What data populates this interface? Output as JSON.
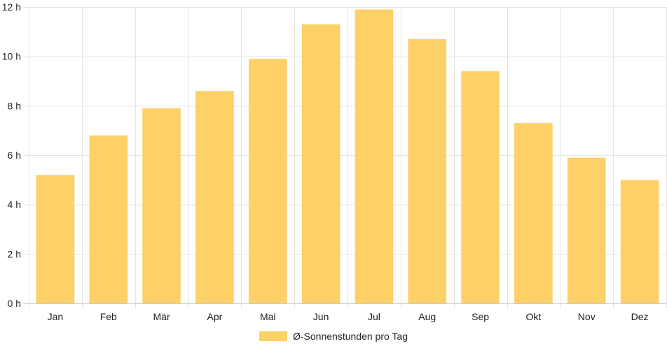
{
  "chart_data": {
    "type": "bar",
    "categories": [
      "Jan",
      "Feb",
      "Mär",
      "Apr",
      "Mai",
      "Jun",
      "Jul",
      "Aug",
      "Sep",
      "Okt",
      "Nov",
      "Dez"
    ],
    "series": [
      {
        "name": "Ø-Sonnenstunden pro Tag",
        "values": [
          5.2,
          6.8,
          7.9,
          8.6,
          9.9,
          11.3,
          11.9,
          10.7,
          9.4,
          7.3,
          5.9,
          5.0
        ],
        "color": "#fdd068"
      }
    ],
    "title": "",
    "xlabel": "",
    "ylabel": "",
    "ylim": [
      0,
      12
    ],
    "yticks": [
      0,
      2,
      4,
      6,
      8,
      10,
      12
    ],
    "ytick_labels": [
      "0 h",
      "2 h",
      "4 h",
      "6 h",
      "8 h",
      "10 h",
      "12 h"
    ],
    "grid": true,
    "legend_position": "bottom-center",
    "grid_color": "#e4e4e4",
    "axis_color": "#cccccc"
  }
}
